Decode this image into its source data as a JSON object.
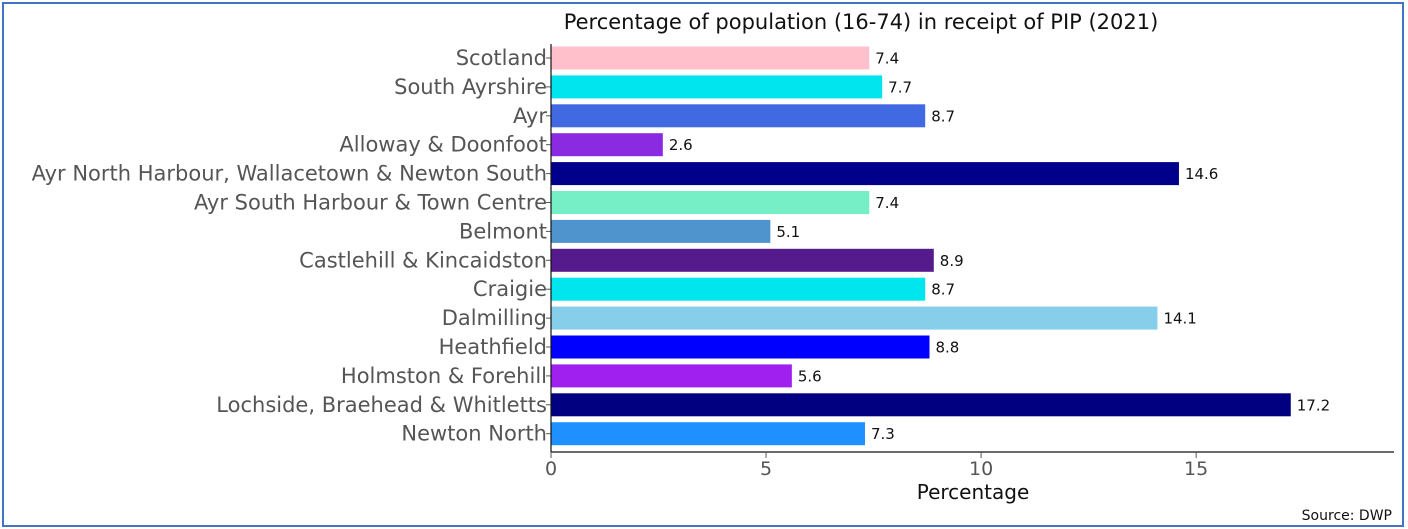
{
  "chart_data": {
    "type": "bar",
    "orientation": "horizontal",
    "title": "Percentage of population (16-74) in receipt of PIP (2021)",
    "xlabel": "Percentage",
    "ylabel": "",
    "xlim": [
      0,
      19.6
    ],
    "xticks": [
      0,
      5,
      10,
      15
    ],
    "grid": false,
    "categories": [
      "Scotland",
      "South Ayrshire",
      "Ayr",
      "Alloway & Doonfoot",
      "Ayr North Harbour, Wallacetown & Newton South",
      "Ayr South Harbour & Town Centre",
      "Belmont",
      "Castlehill & Kincaidston",
      "Craigie",
      "Dalmilling",
      "Heathfield",
      "Holmston & Forehill",
      "Lochside, Braehead & Whitletts",
      "Newton North"
    ],
    "values": [
      7.4,
      7.7,
      8.7,
      2.6,
      14.6,
      7.4,
      5.1,
      8.9,
      8.7,
      14.1,
      8.8,
      5.6,
      17.2,
      7.3
    ],
    "value_labels": [
      "7.4",
      "7.7",
      "8.7",
      "2.6",
      "14.6",
      "7.4",
      "5.1",
      "8.9",
      "8.7",
      "14.1",
      "8.8",
      "5.6",
      "17.2",
      "7.3"
    ],
    "colors": [
      "#ffc0cb",
      "#00e5ee",
      "#4169e1",
      "#8a2be2",
      "#00008b",
      "#76eec6",
      "#4f94cd",
      "#551a8b",
      "#00e5ee",
      "#87ceeb",
      "#0000ff",
      "#a020f0",
      "#000080",
      "#1e90ff"
    ]
  },
  "source": "Source: DWP"
}
